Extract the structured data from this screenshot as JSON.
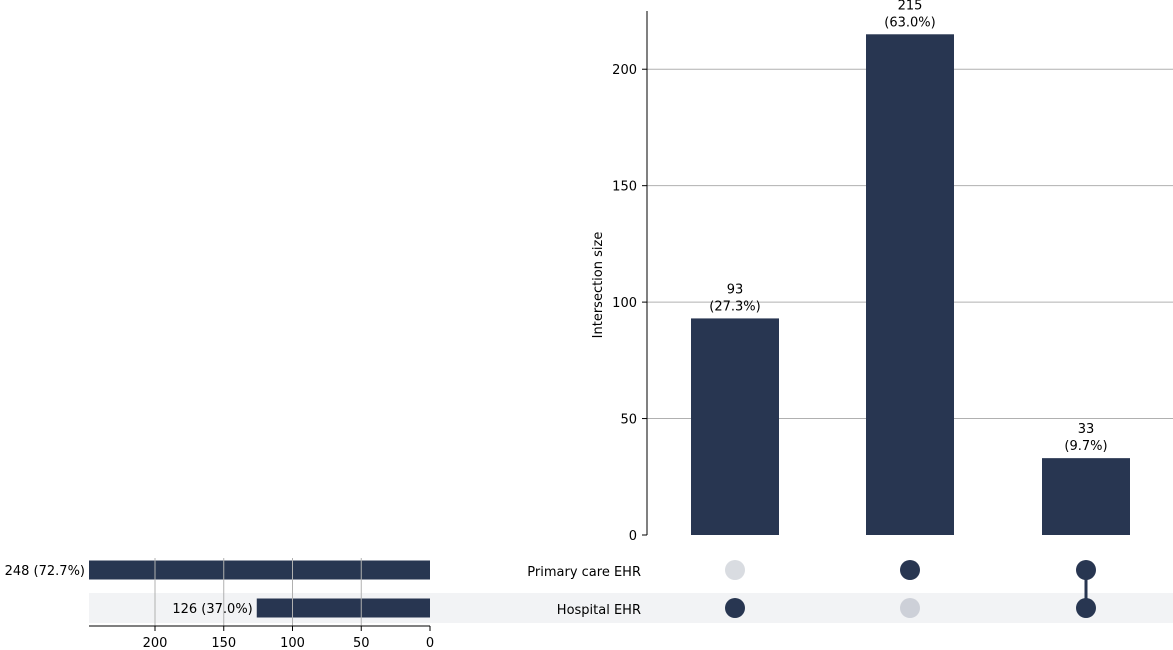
{
  "chart_data": {
    "type": "bar",
    "subtype": "upset",
    "ylabel": "Intersection size",
    "ylim": [
      0,
      225
    ],
    "yticks": [
      0,
      50,
      100,
      150,
      200
    ],
    "grid": true,
    "sets": [
      {
        "name": "Primary care EHR",
        "size": 248,
        "label": "248 (72.7%)"
      },
      {
        "name": "Hospital EHR",
        "size": 126,
        "label": "126 (37.0%)"
      }
    ],
    "set_size_ticks": [
      200,
      150,
      100,
      50,
      0
    ],
    "set_size_xlim": [
      248,
      0
    ],
    "intersections": [
      {
        "members": [
          false,
          true
        ],
        "value": 93,
        "label": "93",
        "pct": "(27.3%)"
      },
      {
        "members": [
          true,
          false
        ],
        "value": 215,
        "label": "215",
        "pct": "(63.0%)"
      },
      {
        "members": [
          true,
          true
        ],
        "value": 33,
        "label": "33",
        "pct": "(9.7%)"
      }
    ]
  },
  "colors": {
    "bar": "#283651",
    "dot_inactive_first": "#d9dce1",
    "dot_inactive_second": "#cdd0d8",
    "grid": "#b0b0b0",
    "shade": "#f2f3f5"
  }
}
